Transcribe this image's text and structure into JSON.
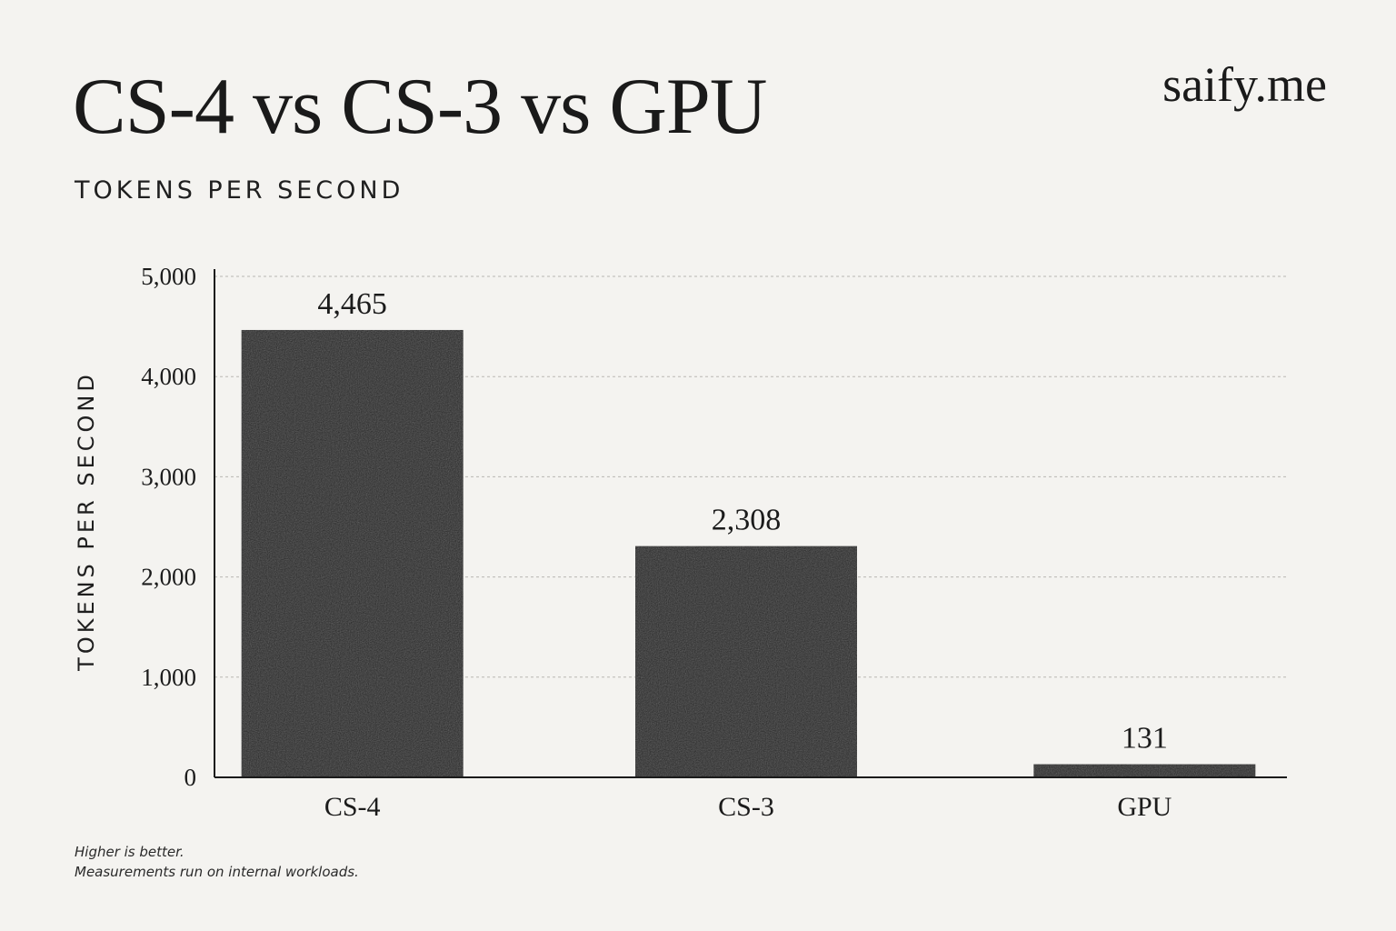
{
  "header": {
    "title": "CS-4 vs CS-3 vs GPU",
    "subtitle": "TOKENS PER SECOND",
    "brand": "saify.me"
  },
  "footnotes": [
    "Higher is better.",
    "Measurements run on internal workloads."
  ],
  "chart_data": {
    "type": "bar",
    "categories": [
      "CS-4",
      "CS-3",
      "GPU"
    ],
    "values": [
      4465,
      2308,
      131
    ],
    "data_labels": [
      "4,465",
      "2,308",
      "131"
    ],
    "ylabel": "TOKENS PER SECOND",
    "xlabel": "",
    "ylim": [
      0,
      5000
    ],
    "yticks": [
      0,
      1000,
      2000,
      3000,
      4000,
      5000
    ],
    "ytick_labels": [
      "0",
      "1,000",
      "2,000",
      "3,000",
      "4,000",
      "5,000"
    ],
    "grid": true,
    "bar_color": "#232323",
    "background_color": "#f4f3f0"
  }
}
